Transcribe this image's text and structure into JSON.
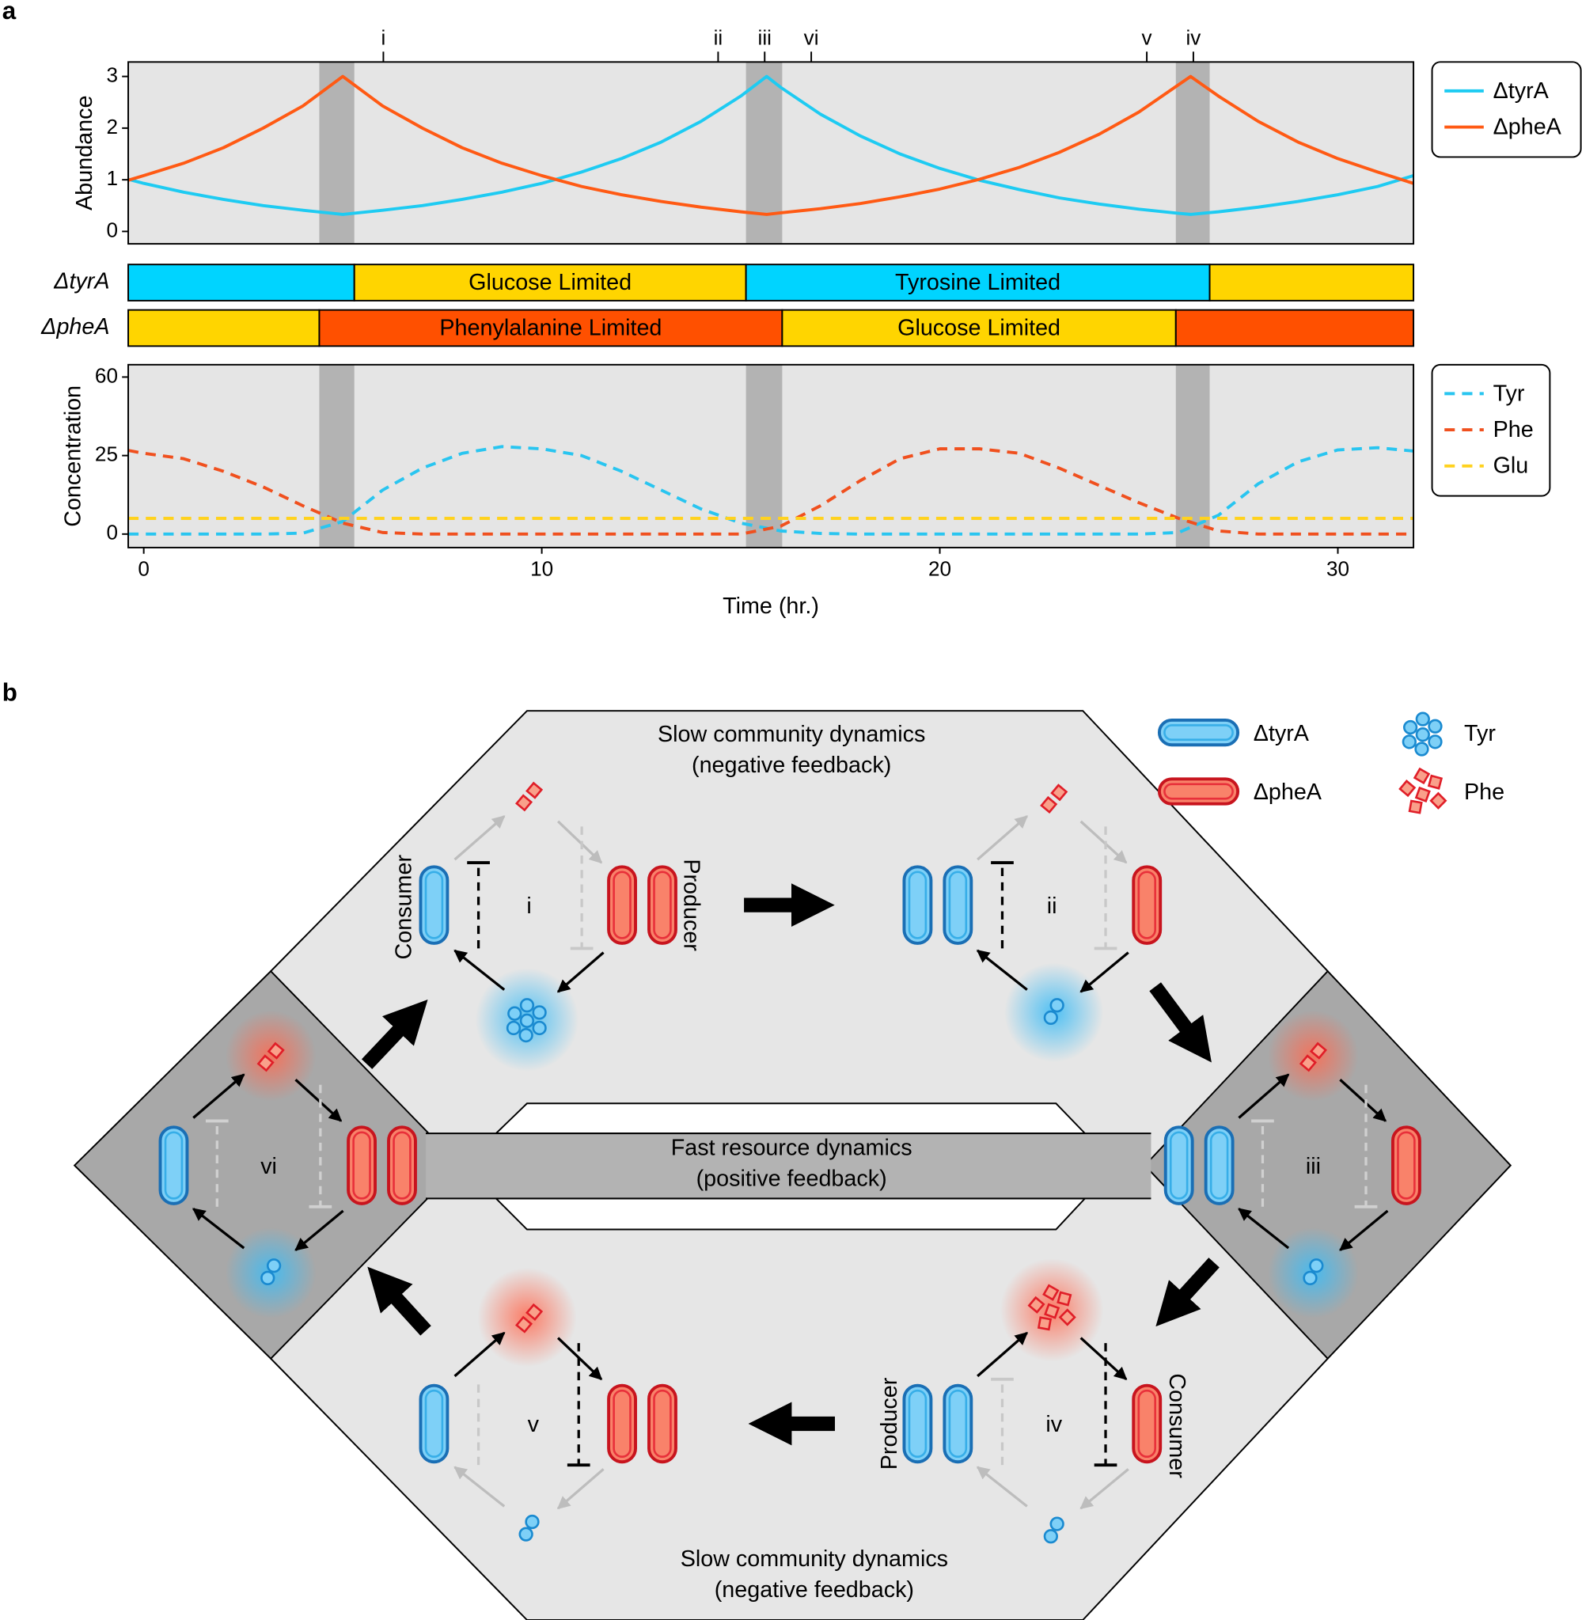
{
  "panel_labels": [
    "a",
    "b"
  ],
  "chart_data": [
    {
      "type": "line",
      "ylabel": "Abundance",
      "xlim": [
        -0.39,
        31.9
      ],
      "ylim": [
        -0.24,
        3.28
      ],
      "yticks": [
        0,
        1,
        2,
        3
      ],
      "x": [
        -0.39,
        0,
        1,
        2,
        3,
        4,
        5,
        6,
        7,
        8,
        9,
        10,
        11,
        12,
        13,
        14,
        15,
        15.65,
        16,
        17,
        18,
        19,
        20,
        21,
        22,
        23,
        24,
        25,
        26,
        26.3,
        27,
        28,
        29,
        30,
        31,
        31.9
      ],
      "series": [
        {
          "name": "ΔtyrA",
          "color": "#1ecbf2",
          "values": [
            1.01,
            0.93,
            0.76,
            0.62,
            0.5,
            0.41,
            0.33,
            0.41,
            0.5,
            0.62,
            0.76,
            0.93,
            1.15,
            1.41,
            1.73,
            2.13,
            2.62,
            3.0,
            2.79,
            2.27,
            1.85,
            1.5,
            1.22,
            0.99,
            0.81,
            0.65,
            0.53,
            0.43,
            0.35,
            0.33,
            0.38,
            0.47,
            0.58,
            0.71,
            0.87,
            1.08
          ]
        },
        {
          "name": "ΔpheA",
          "color": "#ff5a14",
          "values": [
            0.99,
            1.08,
            1.32,
            1.62,
            2.0,
            2.43,
            3.0,
            2.43,
            2.0,
            1.62,
            1.32,
            1.08,
            0.87,
            0.71,
            0.58,
            0.47,
            0.38,
            0.33,
            0.36,
            0.44,
            0.54,
            0.67,
            0.82,
            1.01,
            1.24,
            1.53,
            1.88,
            2.31,
            2.84,
            3.0,
            2.62,
            2.13,
            1.73,
            1.41,
            1.15,
            0.93
          ]
        }
      ],
      "shaded_regions": [
        [
          4.41,
          5.29
        ],
        [
          15.13,
          16.04
        ],
        [
          25.93,
          26.78
        ]
      ],
      "shade_color": "#b3b3b3",
      "annotations": [
        {
          "text": "i",
          "x": 6.02
        },
        {
          "text": "ii",
          "x": 14.43
        },
        {
          "text": "iii",
          "x": 15.6
        },
        {
          "text": "vi",
          "x": 16.77
        },
        {
          "text": "v",
          "x": 25.2
        },
        {
          "text": "iv",
          "x": 26.37
        }
      ],
      "legend": "outside-right"
    },
    {
      "type": "timeline",
      "xlim": [
        -0.39,
        31.9
      ],
      "rows": [
        {
          "name": "ΔtyrA",
          "segments": [
            {
              "start": -0.39,
              "end": 5.29,
              "color": "#00d4ff"
            },
            {
              "start": 5.29,
              "end": 15.13,
              "color": "#ffd500",
              "label": "Glucose Limited"
            },
            {
              "start": 15.13,
              "end": 26.78,
              "color": "#00d4ff",
              "label": "Tyrosine Limited"
            },
            {
              "start": 26.78,
              "end": 31.9,
              "color": "#ffd500"
            }
          ]
        },
        {
          "name": "ΔpheA",
          "segments": [
            {
              "start": -0.39,
              "end": 4.41,
              "color": "#ffd500"
            },
            {
              "start": 4.41,
              "end": 16.04,
              "color": "#ff5000",
              "label": "Phenylalanine Limited"
            },
            {
              "start": 16.04,
              "end": 25.93,
              "color": "#ffd500",
              "label": "Glucose Limited"
            },
            {
              "start": 25.93,
              "end": 31.9,
              "color": "#ff5000"
            }
          ]
        }
      ]
    },
    {
      "type": "line",
      "ylabel": "Concentration",
      "xlabel": "Time (hr.)",
      "xlim": [
        -0.39,
        31.9
      ],
      "xticks": [
        0,
        10,
        20,
        30
      ],
      "ylim": [
        -4.3,
        65.5
      ],
      "yticks": [
        0,
        25,
        60
      ],
      "yscale": "piecewise-linear",
      "x": [
        -0.39,
        0,
        1,
        2,
        3,
        4,
        5,
        6,
        7,
        8,
        9,
        10,
        11,
        12,
        13,
        14,
        15,
        16,
        17,
        18,
        19,
        20,
        21,
        22,
        23,
        24,
        25,
        26,
        27,
        28,
        29,
        30,
        31,
        31.9
      ],
      "series": [
        {
          "name": "Tyr",
          "color": "#29c5f0",
          "dash": true,
          "values": [
            0,
            0,
            0,
            0,
            0,
            0.3,
            4,
            14,
            21,
            26,
            29,
            28,
            25,
            20,
            14,
            8,
            3.5,
            1,
            0.2,
            0,
            0,
            0,
            0,
            0,
            0,
            0,
            0,
            0.5,
            6,
            16,
            23,
            27.5,
            28.5,
            27
          ]
        },
        {
          "name": "Phe",
          "color": "#f0501e",
          "dash": true,
          "values": [
            27.3,
            26,
            24,
            20,
            15,
            9,
            3.5,
            0.5,
            0,
            0,
            0,
            0,
            0,
            0,
            0,
            0,
            0,
            2.5,
            9,
            17,
            24,
            28,
            28,
            26,
            21,
            15.5,
            10,
            5,
            1,
            0,
            0,
            0,
            0,
            0
          ]
        },
        {
          "name": "Glu",
          "color": "#ffd21e",
          "dash": true,
          "values": [
            5,
            5,
            5,
            5,
            5,
            5,
            5,
            5,
            5,
            5,
            5,
            5,
            5,
            5,
            5,
            5,
            5,
            5,
            5,
            5,
            5,
            5,
            5,
            5,
            5,
            5,
            5,
            5,
            5,
            5,
            5,
            5,
            5,
            5
          ]
        }
      ],
      "shaded_regions": [
        [
          4.41,
          5.29
        ],
        [
          15.13,
          16.04
        ],
        [
          25.93,
          26.78
        ]
      ],
      "shade_color": "#b3b3b3",
      "legend": "outside-right"
    }
  ],
  "diagram": {
    "top_title": [
      "Slow community dynamics",
      "(negative feedback)"
    ],
    "middle_title": [
      "Fast resource dynamics",
      "(positive feedback)"
    ],
    "bottom_title": [
      "Slow community dynamics",
      "(negative feedback)"
    ],
    "states": [
      {
        "label": "i",
        "left_role": "Consumer",
        "right_role": "Producer"
      },
      {
        "label": "ii"
      },
      {
        "label": "iii"
      },
      {
        "label": "iv",
        "left_role": "Producer",
        "right_role": "Consumer"
      },
      {
        "label": "v"
      },
      {
        "label": "vi"
      }
    ],
    "legend": [
      "ΔtyrA",
      "ΔpheA",
      "Tyr",
      "Phe"
    ]
  }
}
